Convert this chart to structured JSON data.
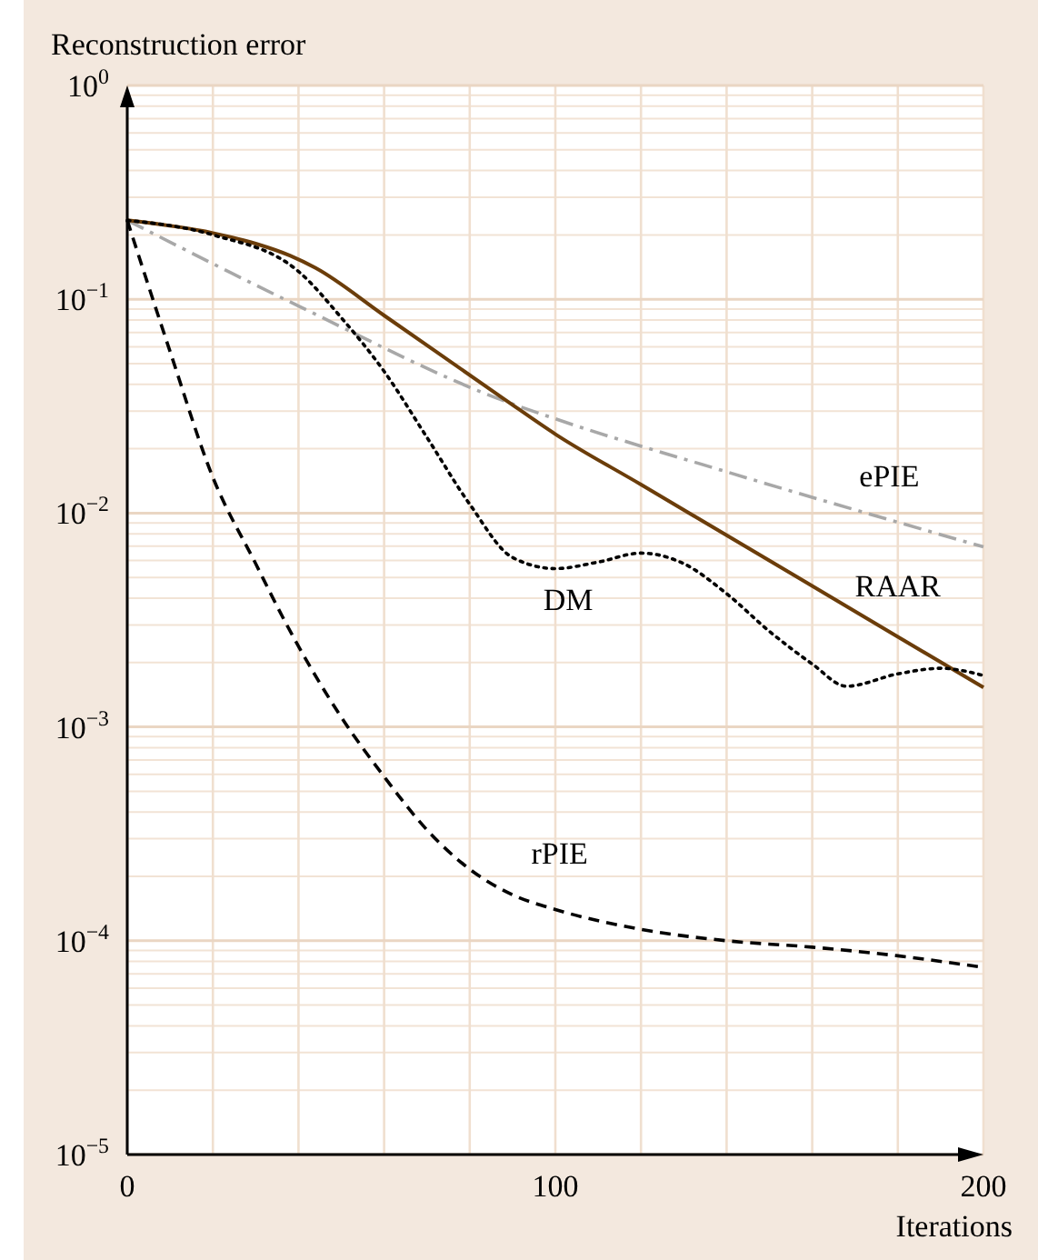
{
  "chart_data": {
    "type": "line",
    "ylabel": "Reconstruction error",
    "xlabel": "Iterations",
    "log": "y",
    "grid": true,
    "xlim": [
      0,
      200
    ],
    "xticks": [
      0,
      {
        "value": 20,
        "label": null
      },
      {
        "value": 40,
        "label": null
      },
      {
        "value": 60,
        "label": null
      },
      {
        "value": 80,
        "label": null
      },
      100,
      {
        "value": 120,
        "label": null
      },
      {
        "value": 140,
        "label": null
      },
      {
        "value": 160,
        "label": null
      },
      {
        "value": 180,
        "label": null
      },
      200
    ],
    "ylim": [
      1e-05,
      1
    ],
    "yticks": [
      {
        "value": 1e-05,
        "label": "10$^{−5}$"
      },
      {
        "value": 0.0001,
        "label": "10$^{−4}$"
      },
      {
        "value": 0.001,
        "label": "10$^{−3}$"
      },
      {
        "value": 0.01,
        "label": "10$^{−2}$"
      },
      {
        "value": 0.1,
        "label": "10$^{−1}$"
      },
      {
        "value": 1,
        "label": "10$^{0}$"
      }
    ],
    "series": [
      {
        "name": "ePIE",
        "color": "#a8a8a8",
        "line_style": "dashdot",
        "x": [
          0,
          40,
          88,
          100,
          140,
          200
        ],
        "values": [
          0.234,
          0.093,
          0.0335,
          0.0276,
          0.0156,
          0.00695
        ]
      },
      {
        "name": "RAAR",
        "color": "#6b3d0a",
        "line_style": "solid",
        "x": [
          0,
          20,
          30,
          38,
          44,
          60,
          88,
          100,
          120,
          180,
          200
        ],
        "values": [
          0.234,
          0.204,
          0.182,
          0.16,
          0.14,
          0.084,
          0.0342,
          0.0234,
          0.0136,
          0.00264,
          0.00153
        ]
      },
      {
        "name": "DM",
        "color": "#000000",
        "line_style": "dotted",
        "x": [
          0,
          20,
          40,
          50,
          60,
          70,
          80,
          90,
          100,
          110,
          120,
          130,
          140,
          150,
          160,
          168,
          180,
          190,
          200
        ],
        "values": [
          0.234,
          0.2,
          0.135,
          0.082,
          0.046,
          0.0226,
          0.011,
          0.0062,
          0.0055,
          0.0059,
          0.0065,
          0.0058,
          0.0042,
          0.0028,
          0.00197,
          0.00155,
          0.00177,
          0.00188,
          0.00174
        ]
      },
      {
        "name": "rPIE",
        "color": "#000000",
        "line_style": "dashed",
        "x": [
          0,
          10,
          20,
          30,
          37,
          50,
          60,
          70,
          80,
          90,
          100,
          120,
          140,
          160,
          180,
          200
        ],
        "values": [
          0.234,
          0.057,
          0.0147,
          0.0058,
          0.00307,
          0.00111,
          0.000585,
          0.00033,
          0.000216,
          0.000164,
          0.00014,
          0.000113,
          0.0001,
          9.33e-05,
          8.5e-05,
          7.5e-05
        ]
      }
    ]
  }
}
